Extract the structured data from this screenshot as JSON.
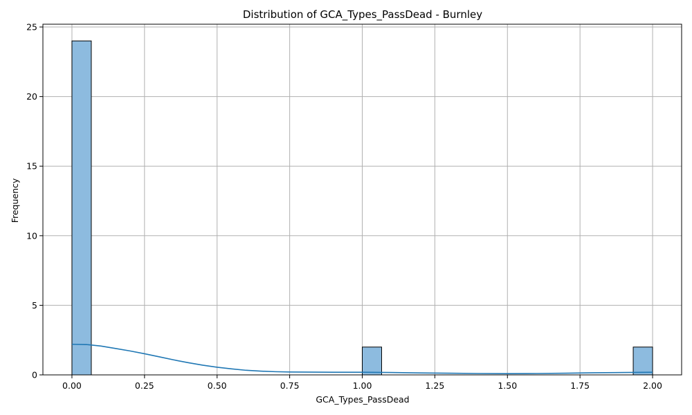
{
  "chart_data": {
    "type": "bar",
    "title": "Distribution of GCA_Types_PassDead - Burnley",
    "xlabel": "GCA_Types_PassDead",
    "ylabel": "Frequency",
    "xlim": [
      -0.1,
      2.1
    ],
    "ylim": [
      0,
      25.2
    ],
    "x_ticks": [
      0.0,
      0.25,
      0.5,
      0.75,
      1.0,
      1.25,
      1.5,
      1.75,
      2.0
    ],
    "x_tick_labels": [
      "0.00",
      "0.25",
      "0.50",
      "0.75",
      "1.00",
      "1.25",
      "1.50",
      "1.75",
      "2.00"
    ],
    "y_ticks": [
      0,
      5,
      10,
      15,
      20,
      25
    ],
    "y_tick_labels": [
      "0",
      "5",
      "10",
      "15",
      "20",
      "25"
    ],
    "grid": true,
    "histogram_bins": [
      {
        "x0": 0.0,
        "x1": 0.0667,
        "count": 24
      },
      {
        "x0": 1.0,
        "x1": 1.0667,
        "count": 2
      },
      {
        "x0": 1.9333,
        "x1": 2.0,
        "count": 2
      }
    ],
    "kde_curve": {
      "x": [
        0.0,
        0.05,
        0.1,
        0.15,
        0.2,
        0.25,
        0.3,
        0.35,
        0.4,
        0.45,
        0.5,
        0.55,
        0.6,
        0.65,
        0.7,
        0.75,
        0.8,
        0.9,
        1.0,
        1.1,
        1.2,
        1.3,
        1.4,
        1.5,
        1.6,
        1.7,
        1.8,
        1.9,
        2.0
      ],
      "y": [
        2.2,
        2.18,
        2.07,
        1.9,
        1.72,
        1.52,
        1.3,
        1.08,
        0.88,
        0.7,
        0.55,
        0.43,
        0.33,
        0.27,
        0.23,
        0.21,
        0.2,
        0.19,
        0.19,
        0.17,
        0.14,
        0.12,
        0.1,
        0.09,
        0.1,
        0.12,
        0.15,
        0.17,
        0.19
      ]
    }
  }
}
